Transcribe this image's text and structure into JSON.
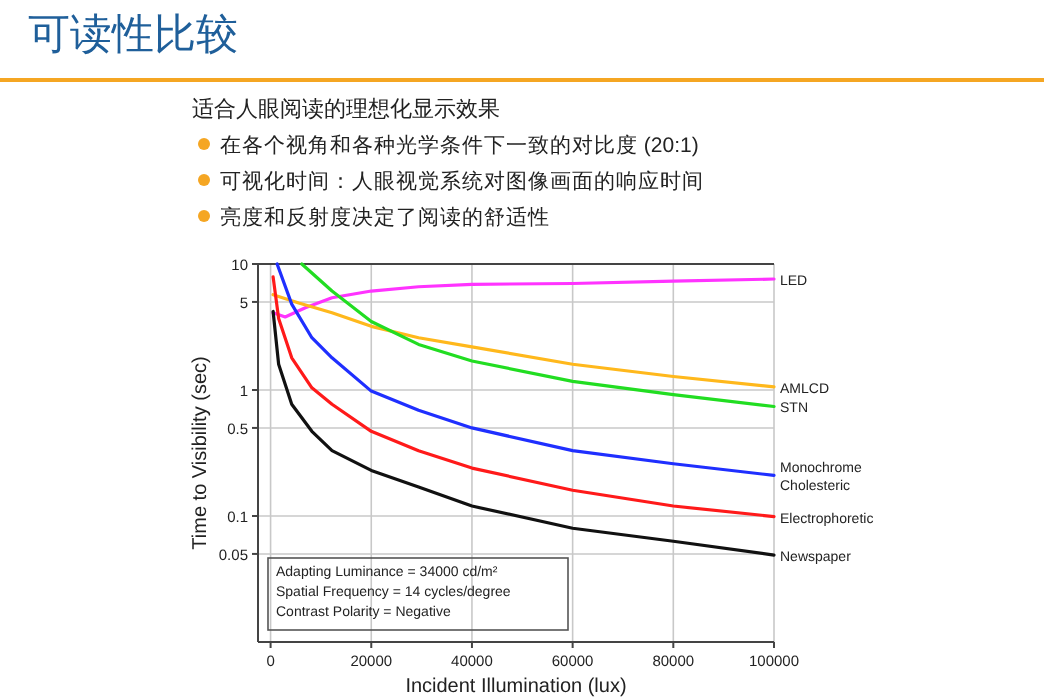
{
  "chart_data": {
    "type": "line",
    "title": "可读性比较",
    "subtitle": "适合人眼阅读的理想化显示效果",
    "annotations": [
      "在各个视角和各种光学条件下一致的对比度 (20:1)",
      "可视化时间：人眼视觉系统对图像画面的响应时间",
      "亮度和反射度决定了阅读的舒适性",
      "Adapting Luminance = 34000 cd/m²",
      "Spatial Frequency = 14 cycles/degree",
      "Contrast Polarity = Negative"
    ],
    "xlabel": "Incident Illumination (lux)",
    "ylabel": "Time to Visibility (sec)",
    "log": "y",
    "grid": true,
    "xlim": [
      -2500,
      100000
    ],
    "xticks": [
      0,
      20000,
      40000,
      60000,
      80000,
      100000
    ],
    "ylim": [
      0.01,
      10
    ],
    "yticks": [
      0.05,
      0.1,
      0.5,
      1,
      5,
      10
    ],
    "series": [
      {
        "name": "LED",
        "color": "#ff33ff",
        "x": [
          500,
          2900,
          6900,
          12200,
          20000,
          29400,
          40000,
          60000,
          80000,
          100000
        ],
        "values": [
          4.1,
          3.8,
          4.5,
          5.4,
          6.1,
          6.6,
          6.9,
          7.0,
          7.3,
          7.6
        ]
      },
      {
        "name": "AMLCD",
        "color": "#ffb81c",
        "x": [
          500,
          5600,
          12200,
          20000,
          29400,
          40000,
          60000,
          80000,
          100000
        ],
        "values": [
          5.7,
          4.9,
          4.1,
          3.2,
          2.6,
          2.2,
          1.6,
          1.28,
          1.06
        ]
      },
      {
        "name": "STN",
        "color": "#22dd22",
        "x": [
          6200,
          12200,
          20000,
          29400,
          40000,
          60000,
          80000,
          100000
        ],
        "values": [
          10,
          6.1,
          3.5,
          2.3,
          1.7,
          1.17,
          0.92,
          0.74
        ]
      },
      {
        "name": "Monochrome Cholesteric",
        "color": "#1f2fff",
        "x": [
          1300,
          4200,
          8200,
          12200,
          20000,
          29400,
          40000,
          60000,
          80000,
          100000
        ],
        "values": [
          10,
          4.8,
          2.6,
          1.8,
          0.98,
          0.69,
          0.5,
          0.33,
          0.26,
          0.21
        ]
      },
      {
        "name": "Electrophoretic",
        "color": "#ff1a1a",
        "x": [
          500,
          1600,
          4200,
          8200,
          12200,
          20000,
          29400,
          40000,
          60000,
          80000,
          100000
        ],
        "values": [
          7.9,
          3.7,
          1.8,
          1.04,
          0.77,
          0.47,
          0.33,
          0.24,
          0.16,
          0.12,
          0.099
        ]
      },
      {
        "name": "Newspaper",
        "color": "#111111",
        "x": [
          500,
          1600,
          4200,
          8200,
          12200,
          20000,
          29400,
          40000,
          60000,
          80000,
          100000
        ],
        "values": [
          4.2,
          1.6,
          0.77,
          0.47,
          0.33,
          0.23,
          0.17,
          0.12,
          0.08,
          0.063,
          0.049
        ]
      }
    ]
  }
}
